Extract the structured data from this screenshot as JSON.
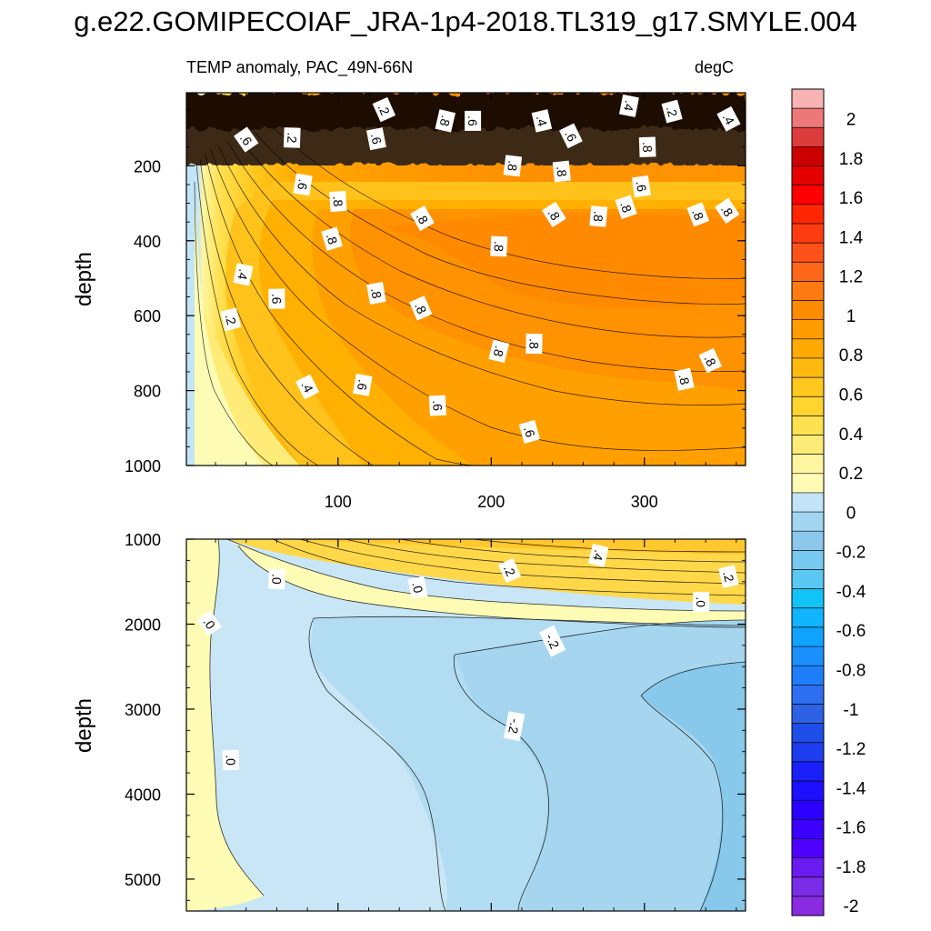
{
  "title": "g.e22.GOMIPECOIAF_JRA-1p4-2018.TL319_g17.SMYLE.004",
  "chart_data": {
    "type": "heatmap",
    "variable_label": "TEMP anomaly, PAC_49N-66N",
    "units_label": "degC",
    "x_range": [
      1,
      366
    ],
    "x_ticks": [
      {
        "v": 100,
        "label": "100"
      },
      {
        "v": 200,
        "label": "200"
      },
      {
        "v": 300,
        "label": "300"
      }
    ],
    "panels": [
      {
        "name": "upper",
        "ylabel": "depth",
        "y_range": [
          5,
          1000
        ],
        "y_ticks": [
          {
            "v": 200,
            "label": "200"
          },
          {
            "v": 400,
            "label": "400"
          },
          {
            "v": 600,
            "label": "600"
          },
          {
            "v": 800,
            "label": "800"
          },
          {
            "v": 1000,
            "label": "1000"
          }
        ],
        "contour_labels": [
          {
            "x": 40,
            "y": 130,
            "text": ".6"
          },
          {
            "x": 70,
            "y": 125,
            "text": ".2"
          },
          {
            "x": 125,
            "y": 128,
            "text": ".6"
          },
          {
            "x": 130,
            "y": 50,
            "text": ".2"
          },
          {
            "x": 170,
            "y": 80,
            "text": ".8"
          },
          {
            "x": 188,
            "y": 80,
            "text": ".6"
          },
          {
            "x": 233,
            "y": 80,
            "text": ".4"
          },
          {
            "x": 252,
            "y": 120,
            "text": ".6"
          },
          {
            "x": 290,
            "y": 40,
            "text": ".4"
          },
          {
            "x": 302,
            "y": 150,
            "text": ".8"
          },
          {
            "x": 318,
            "y": 55,
            "text": ".2"
          },
          {
            "x": 355,
            "y": 75,
            "text": ".4"
          },
          {
            "x": 77,
            "y": 250,
            "text": ".6"
          },
          {
            "x": 100,
            "y": 295,
            "text": ".8"
          },
          {
            "x": 96,
            "y": 395,
            "text": ".8"
          },
          {
            "x": 155,
            "y": 340,
            "text": ".8"
          },
          {
            "x": 214,
            "y": 200,
            "text": ".8"
          },
          {
            "x": 246,
            "y": 215,
            "text": ".8"
          },
          {
            "x": 288,
            "y": 310,
            "text": ".8"
          },
          {
            "x": 241,
            "y": 330,
            "text": ".8"
          },
          {
            "x": 270,
            "y": 335,
            "text": ".8"
          },
          {
            "x": 298,
            "y": 255,
            "text": ".6"
          },
          {
            "x": 335,
            "y": 330,
            "text": ".8"
          },
          {
            "x": 354,
            "y": 320,
            "text": ".8"
          },
          {
            "x": 205,
            "y": 415,
            "text": ".8"
          },
          {
            "x": 125,
            "y": 540,
            "text": ".8"
          },
          {
            "x": 154,
            "y": 580,
            "text": ".8"
          },
          {
            "x": 205,
            "y": 695,
            "text": ".8"
          },
          {
            "x": 228,
            "y": 675,
            "text": ".8"
          },
          {
            "x": 326,
            "y": 770,
            "text": ".8"
          },
          {
            "x": 343,
            "y": 720,
            "text": ".8"
          },
          {
            "x": 38,
            "y": 490,
            "text": ".4"
          },
          {
            "x": 60,
            "y": 555,
            "text": ".6"
          },
          {
            "x": 30,
            "y": 610,
            "text": ".2"
          },
          {
            "x": 80,
            "y": 790,
            "text": ".4"
          },
          {
            "x": 116,
            "y": 785,
            "text": ".6"
          },
          {
            "x": 165,
            "y": 840,
            "text": ".6"
          },
          {
            "x": 225,
            "y": 910,
            "text": ".6"
          }
        ]
      },
      {
        "name": "lower",
        "ylabel": "depth",
        "y_range": [
          1000,
          5375
        ],
        "y_ticks": [
          {
            "v": 1000,
            "label": "1000"
          },
          {
            "v": 2000,
            "label": "2000"
          },
          {
            "v": 3000,
            "label": "3000"
          },
          {
            "v": 4000,
            "label": "4000"
          },
          {
            "v": 5000,
            "label": "5000"
          }
        ],
        "contour_labels": [
          {
            "x": 16,
            "y": 1990,
            "text": ".0"
          },
          {
            "x": 60,
            "y": 1470,
            "text": ".0"
          },
          {
            "x": 152,
            "y": 1570,
            "text": ".0"
          },
          {
            "x": 212,
            "y": 1370,
            "text": ".2"
          },
          {
            "x": 270,
            "y": 1190,
            "text": ".4"
          },
          {
            "x": 337,
            "y": 1740,
            "text": ".0"
          },
          {
            "x": 355,
            "y": 1440,
            "text": ".2"
          },
          {
            "x": 240,
            "y": 2200,
            "text": "-.2"
          },
          {
            "x": 215,
            "y": 3200,
            "text": "-.2"
          },
          {
            "x": 30,
            "y": 3600,
            "text": ".0"
          }
        ]
      }
    ],
    "colorbar": {
      "min": -2.1,
      "max": 2.1,
      "step": 0.1,
      "colors": [
        "#8a2be2",
        "#7a2ce6",
        "#6a1cf0",
        "#5000ff",
        "#3c00ff",
        "#2b00ff",
        "#1e10ff",
        "#1a20fa",
        "#1e3cf0",
        "#1e4ee8",
        "#2e62e4",
        "#2e6ef0",
        "#1e7ef8",
        "#1a90ff",
        "#10a2ff",
        "#10b4ff",
        "#10c4f8",
        "#5ac8f2",
        "#78c9f0",
        "#8cc8ec",
        "#a2d6f0",
        "#c2e4f6",
        "#fefcb4",
        "#fff6a0",
        "#ffec78",
        "#ffe050",
        "#ffd42e",
        "#ffc81e",
        "#ffba10",
        "#ffaa00",
        "#ff9c00",
        "#ff8c00",
        "#ff7a10",
        "#ff6818",
        "#ff5218",
        "#ff3c10",
        "#ff2600",
        "#ff0000",
        "#e40000",
        "#cc0000",
        "#dc3c3c",
        "#ee7878",
        "#f8b4b4"
      ],
      "labels": [
        {
          "v": 2,
          "text": "2"
        },
        {
          "v": 1.8,
          "text": "1.8"
        },
        {
          "v": 1.6,
          "text": "1.6"
        },
        {
          "v": 1.4,
          "text": "1.4"
        },
        {
          "v": 1.2,
          "text": "1.2"
        },
        {
          "v": 1,
          "text": "1"
        },
        {
          "v": 0.8,
          "text": "0.8"
        },
        {
          "v": 0.6,
          "text": "0.6"
        },
        {
          "v": 0.4,
          "text": "0.4"
        },
        {
          "v": 0.2,
          "text": "0.2"
        },
        {
          "v": 0,
          "text": "0"
        },
        {
          "v": -0.2,
          "text": "-0.2"
        },
        {
          "v": -0.4,
          "text": "-0.4"
        },
        {
          "v": -0.6,
          "text": "-0.6"
        },
        {
          "v": -0.8,
          "text": "-0.8"
        },
        {
          "v": -1,
          "text": "-1"
        },
        {
          "v": -1.2,
          "text": "-1.2"
        },
        {
          "v": -1.4,
          "text": "-1.4"
        },
        {
          "v": -1.6,
          "text": "-1.6"
        },
        {
          "v": -1.8,
          "text": "-1.8"
        },
        {
          "v": -2,
          "text": "-2"
        }
      ]
    }
  }
}
